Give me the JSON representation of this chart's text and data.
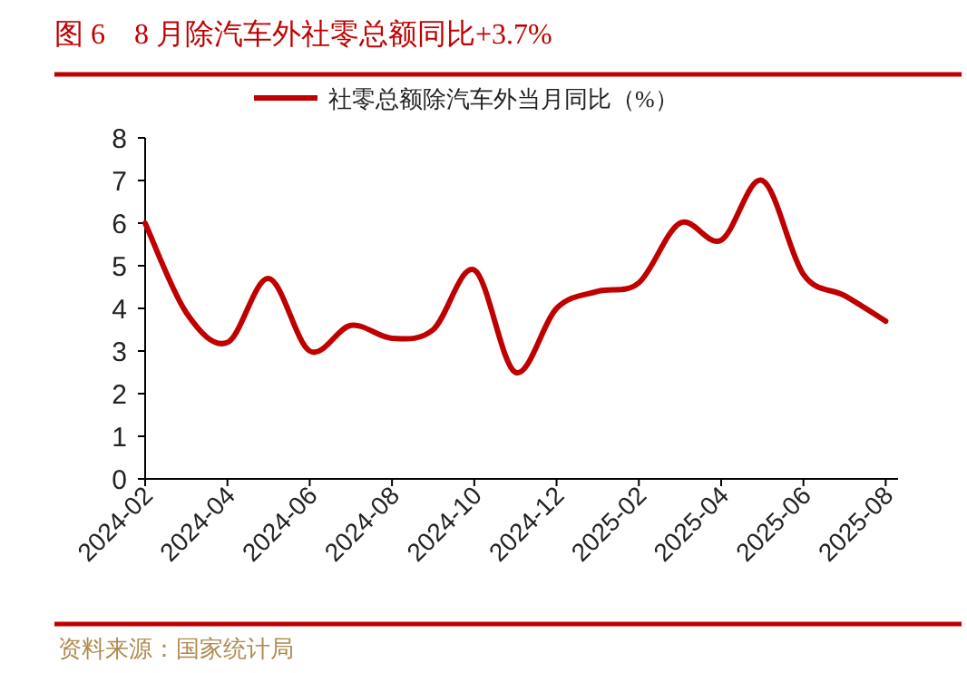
{
  "chart_data": {
    "type": "line",
    "title": "图 6　8 月除汽车外社零总额同比+3.7%",
    "x": [
      "2024-02",
      "2024-03",
      "2024-04",
      "2024-05",
      "2024-06",
      "2024-07",
      "2024-08",
      "2024-09",
      "2024-10",
      "2024-11",
      "2024-12",
      "2025-01",
      "2025-02",
      "2025-03",
      "2025-04",
      "2025-05",
      "2025-06",
      "2025-07",
      "2025-08"
    ],
    "series": [
      {
        "name": "社零总额除汽车外当月同比（%）",
        "color": "#c00000",
        "values": [
          6.0,
          3.9,
          3.2,
          4.7,
          3.0,
          3.6,
          3.3,
          3.5,
          4.9,
          2.5,
          4.0,
          4.4,
          4.6,
          6.0,
          5.6,
          7.0,
          4.8,
          4.3,
          3.7
        ]
      }
    ],
    "xlim": [
      "2024-02",
      "2025-08-10"
    ],
    "xticks": [
      "2024-02",
      "2024-04",
      "2024-06",
      "2024-08",
      "2024-10",
      "2024-12",
      "2025-02",
      "2025-04",
      "2025-06",
      "2025-08"
    ],
    "ylim": [
      0,
      8
    ],
    "yticks": [
      0,
      1,
      2,
      3,
      4,
      5,
      6,
      7,
      8
    ],
    "grid": false,
    "legend": "top",
    "marker": "none",
    "line_style": "solid",
    "annotations": [
      "资料来源：国家统计局"
    ]
  }
}
